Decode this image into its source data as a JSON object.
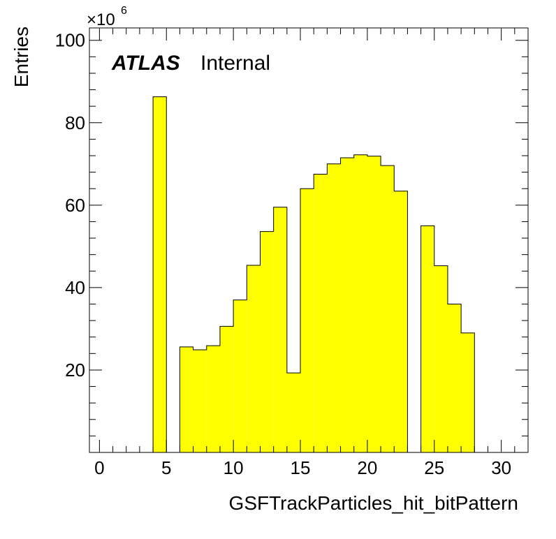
{
  "chart_data": {
    "type": "bar",
    "title": "",
    "xlabel": "GSFTrackParticles_hit_bitPattern",
    "ylabel": "Entries",
    "y_multiplier_label": "×10",
    "y_multiplier_exponent": "6",
    "xlim": [
      -0.75,
      32.0
    ],
    "ylim": [
      0,
      103
    ],
    "x_ticks": [
      0,
      5,
      10,
      15,
      20,
      25,
      30
    ],
    "y_ticks": [
      20,
      40,
      60,
      80,
      100
    ],
    "bin_width": 1,
    "bins": [
      {
        "x_low": 4,
        "value": 86.3
      },
      {
        "x_low": 6,
        "value": 25.6
      },
      {
        "x_low": 7,
        "value": 24.9
      },
      {
        "x_low": 8,
        "value": 25.9
      },
      {
        "x_low": 9,
        "value": 30.6
      },
      {
        "x_low": 10,
        "value": 37.0
      },
      {
        "x_low": 11,
        "value": 45.4
      },
      {
        "x_low": 12,
        "value": 53.6
      },
      {
        "x_low": 13,
        "value": 59.5
      },
      {
        "x_low": 14,
        "value": 19.3
      },
      {
        "x_low": 15,
        "value": 64.0
      },
      {
        "x_low": 16,
        "value": 67.5
      },
      {
        "x_low": 17,
        "value": 70.0
      },
      {
        "x_low": 18,
        "value": 71.5
      },
      {
        "x_low": 19,
        "value": 72.2
      },
      {
        "x_low": 20,
        "value": 71.9
      },
      {
        "x_low": 21,
        "value": 69.6
      },
      {
        "x_low": 22,
        "value": 63.4
      },
      {
        "x_low": 24,
        "value": 55.0
      },
      {
        "x_low": 25,
        "value": 45.3
      },
      {
        "x_low": 26,
        "value": 36.0
      },
      {
        "x_low": 27,
        "value": 29.0
      }
    ],
    "fill_color": "#ffff00",
    "line_color": "#000000",
    "grid": false,
    "legend": "none"
  },
  "label": {
    "experiment": "ATLAS",
    "status": "Internal"
  }
}
